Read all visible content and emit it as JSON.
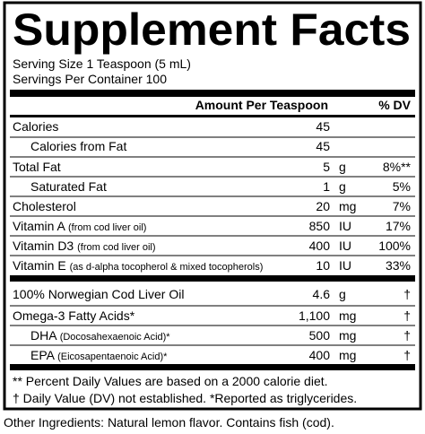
{
  "title": "Supplement Facts",
  "serving": [
    "Serving Size 1 Teaspoon (5 mL)",
    "Servings Per Container 100"
  ],
  "header": {
    "amount": "Amount Per Teaspoon",
    "dv": "% DV"
  },
  "rows": [
    {
      "name": "Calories",
      "amount": 45
    },
    {
      "name": "Calories from Fat",
      "amount": 45
    },
    {
      "name": "Total Fat",
      "amount": 5,
      "unit": "g",
      "dv": "8%**"
    },
    {
      "name": "Saturated Fat",
      "amount": 1,
      "unit": "g",
      "dv": "5%"
    },
    {
      "name": "Cholesterol",
      "amount": 20,
      "unit": "mg",
      "dv": "7%"
    },
    {
      "name": "Vitamin A",
      "note": "(from cod liver oil)",
      "amount": 850,
      "unit": "IU",
      "dv": "17%"
    },
    {
      "name": "Vitamin D3",
      "note": "(from cod liver oil)",
      "amount": 400,
      "unit": "IU",
      "dv": "100%"
    },
    {
      "name": "Vitamin E",
      "note": "(as d-alpha tocopherol & mixed tocopherols)",
      "amount": 10,
      "unit": "IU",
      "dv": "33%"
    },
    {
      "name": "100% Norwegian Cod Liver Oil",
      "amount": 4.6,
      "unit": "g",
      "dv": "†"
    },
    {
      "name": "Omega-3 Fatty Acids*",
      "amount": "1,100",
      "unit": "mg",
      "dv": "†"
    },
    {
      "name": "DHA",
      "note": "(Docosahexaenoic Acid)*",
      "amount": 500,
      "unit": "mg",
      "dv": "†"
    },
    {
      "name": "EPA",
      "note": "(Eicosapentaenoic Acid)*",
      "amount": 400,
      "unit": "mg",
      "dv": "†"
    }
  ],
  "footnotes": [
    "** Percent Daily Values are based on a 2000 calorie diet.",
    "† Daily Value (DV) not established. *Reported as triglycerides."
  ],
  "other": "Other Ingredients:  Natural lemon flavor.  Contains fish (cod)."
}
